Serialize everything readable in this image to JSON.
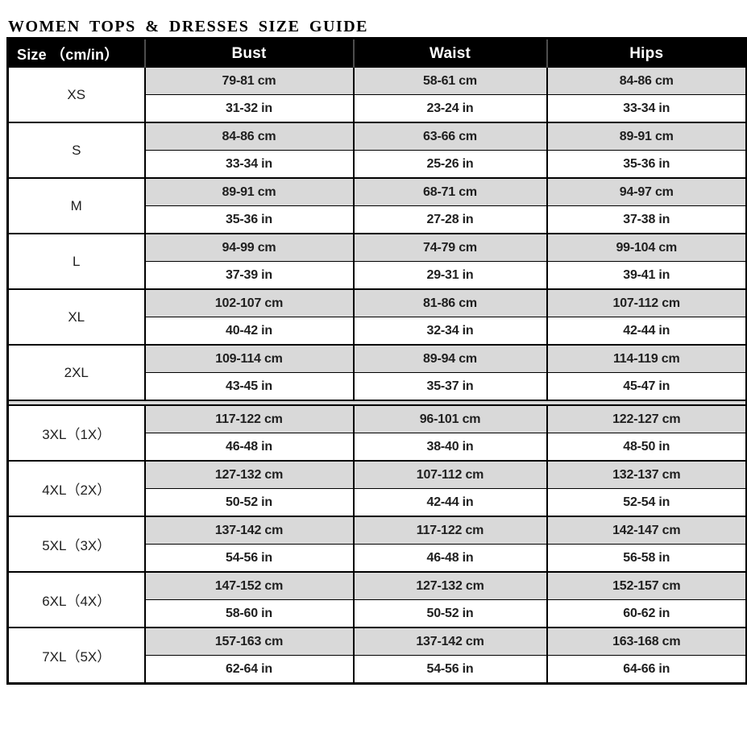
{
  "title": "WOMEN TOPS & DRESSES SIZE GUIDE",
  "colors": {
    "header_bg": "#000000",
    "header_text": "#ffffff",
    "cm_row_bg": "#d9d9d9",
    "in_row_bg": "#ffffff",
    "border": "#000000",
    "body_text": "#1f1f1f"
  },
  "table": {
    "headers": {
      "size": "Size （cm/in）",
      "bust": "Bust",
      "waist": "Waist",
      "hips": "Hips"
    },
    "groups": [
      {
        "size": "XS",
        "bust_cm": "79-81 cm",
        "bust_in": "31-32 in",
        "waist_cm": "58-61 cm",
        "waist_in": "23-24 in",
        "hips_cm": "84-86 cm",
        "hips_in": "33-34 in"
      },
      {
        "size": "S",
        "bust_cm": "84-86 cm",
        "bust_in": "33-34 in",
        "waist_cm": "63-66 cm",
        "waist_in": "25-26 in",
        "hips_cm": "89-91 cm",
        "hips_in": "35-36 in"
      },
      {
        "size": "M",
        "bust_cm": "89-91 cm",
        "bust_in": "35-36 in",
        "waist_cm": "68-71 cm",
        "waist_in": "27-28 in",
        "hips_cm": "94-97 cm",
        "hips_in": "37-38 in"
      },
      {
        "size": "L",
        "bust_cm": "94-99 cm",
        "bust_in": "37-39 in",
        "waist_cm": "74-79 cm",
        "waist_in": "29-31 in",
        "hips_cm": "99-104 cm",
        "hips_in": "39-41 in"
      },
      {
        "size": "XL",
        "bust_cm": "102-107 cm",
        "bust_in": "40-42 in",
        "waist_cm": "81-86 cm",
        "waist_in": "32-34 in",
        "hips_cm": "107-112 cm",
        "hips_in": "42-44 in"
      },
      {
        "size": "2XL",
        "bust_cm": "109-114 cm",
        "bust_in": "43-45 in",
        "waist_cm": "89-94 cm",
        "waist_in": "35-37 in",
        "hips_cm": "114-119 cm",
        "hips_in": "45-47 in"
      },
      {
        "size": "3XL（1X）",
        "bust_cm": "117-122 cm",
        "bust_in": "46-48 in",
        "waist_cm": "96-101 cm",
        "waist_in": "38-40 in",
        "hips_cm": "122-127 cm",
        "hips_in": "48-50 in"
      },
      {
        "size": "4XL（2X）",
        "bust_cm": "127-132 cm",
        "bust_in": "50-52 in",
        "waist_cm": "107-112 cm",
        "waist_in": "42-44 in",
        "hips_cm": "132-137 cm",
        "hips_in": "52-54 in"
      },
      {
        "size": "5XL（3X）",
        "bust_cm": "137-142 cm",
        "bust_in": "54-56 in",
        "waist_cm": "117-122 cm",
        "waist_in": "46-48 in",
        "hips_cm": "142-147 cm",
        "hips_in": "56-58 in"
      },
      {
        "size": "6XL（4X）",
        "bust_cm": "147-152 cm",
        "bust_in": "58-60 in",
        "waist_cm": "127-132 cm",
        "waist_in": "50-52 in",
        "hips_cm": "152-157 cm",
        "hips_in": "60-62 in"
      },
      {
        "size": "7XL（5X）",
        "bust_cm": "157-163 cm",
        "bust_in": "62-64 in",
        "waist_cm": "137-142 cm",
        "waist_in": "54-56 in",
        "hips_cm": "163-168 cm",
        "hips_in": "64-66 in"
      }
    ]
  }
}
